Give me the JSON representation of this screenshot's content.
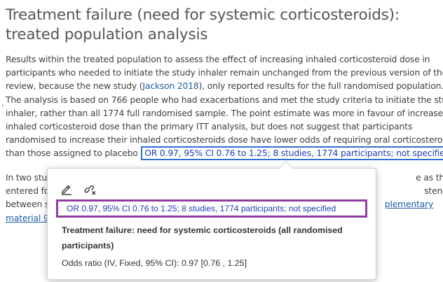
{
  "page": {
    "title_line1": "Treatment failure (need for systemic corticosteroids):",
    "title_line2": "treated population analysis"
  },
  "paragraph1": {
    "line1": "Results within the treated population to assess the effect of increasing inhaled corticosteroid dose in",
    "line2": "participants who needed to initiate the study inhaler remain unchanged from the previous version of the",
    "line3_pre": "review, because the new study (",
    "line3_link": "Jackson 2018",
    "line3_post": "), only reported results for the full randomised population.",
    "line4": "The analysis is based on 766 people who had exacerbations and met the study criteria to initiate the study",
    "line5": "inhaler, rather than all 1774 full randomised sample. The point estimate was more in favour of increased",
    "line6": "inhaled corticosteroid dose than the primary ITT analysis, but does not suggest that participants",
    "line7": "randomised to increase their inhaled corticosteroids dose have lower odds of requiring oral corticosteroids",
    "line8_pre": "than those assigned to placebo",
    "line8_link": "OR 0.97, 95% CI 0.76 to 1.25; 8 studies, 1774 participants; not specified",
    "line8_post": ".",
    "stray_mark": "."
  },
  "paragraph2": {
    "line1_start": "In two stu",
    "line1_end": "e as those",
    "line2_start": "entered fo",
    "line2_end": "stency",
    "line3_start": "between st",
    "line3_link_end": "plementary",
    "line4_link": "material 9"
  },
  "popover": {
    "edit_icon": "pencil-icon",
    "unlink_icon": "unlink-icon",
    "citation": "OR 0.97, 95% CI 0.76 to 1.25; 8 studies, 1774 participants; not specified",
    "heading": "Treatment failure: need for systemic corticosteroids (all randomised participants)",
    "detail": "Odds ratio (IV, Fixed, 95% CI): 0.97 [0.76 , 1.25]"
  },
  "colors": {
    "link": "#1f5ba6",
    "highlight_outline": "#2f6fd0",
    "popover_outline": "#8e3ea0"
  }
}
